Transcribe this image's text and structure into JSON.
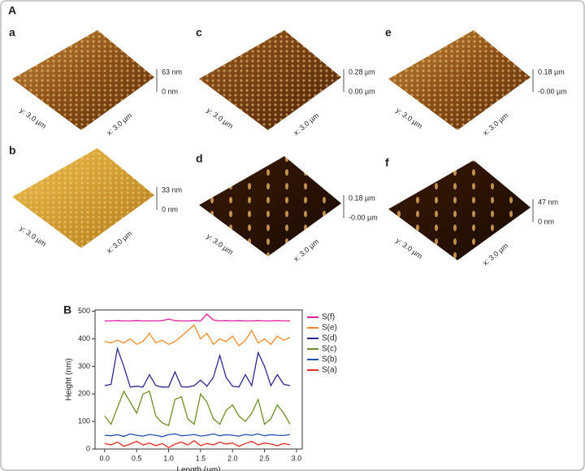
{
  "figure": {
    "label": "A",
    "panels": [
      {
        "label": "a",
        "z_top": "63 nm",
        "z_bottom": "0 nm",
        "y_axis": "y: 3.0 µm",
        "x_axis": "x: 3.0 µm"
      },
      {
        "label": "c",
        "z_top": "0.28 µm",
        "z_bottom": "0.00 µm",
        "y_axis": "y: 3.0 µm",
        "x_axis": "x: 3.0 µm"
      },
      {
        "label": "e",
        "z_top": "0.18 µm",
        "z_bottom": "-0.00 µm",
        "y_axis": "y: 3.0 µm",
        "x_axis": "x: 3.0 µm"
      },
      {
        "label": "b",
        "z_top": "33 nm",
        "z_bottom": "0 nm",
        "y_axis": "y: 3.0 µm",
        "x_axis": "x: 3.0 µm"
      },
      {
        "label": "d",
        "z_top": "0.18 µm",
        "z_bottom": "-0.00 µm",
        "y_axis": "y: 3.0 µm",
        "x_axis": "x: 3.0 µm"
      },
      {
        "label": "f",
        "z_top": "47 nm",
        "z_bottom": "0 nm",
        "y_axis": "y: 3.0 µm",
        "x_axis": "x: 3.0 µm"
      }
    ]
  },
  "chart_data": {
    "type": "line",
    "panel_label": "B",
    "y_label": "Height (nm)",
    "x_label": "Length (µm)",
    "x": [
      0,
      0.1,
      0.2,
      0.3,
      0.4,
      0.5,
      0.6,
      0.7,
      0.8,
      0.9,
      1.0,
      1.1,
      1.2,
      1.3,
      1.4,
      1.5,
      1.6,
      1.7,
      1.8,
      1.9,
      2.0,
      2.1,
      2.2,
      2.3,
      2.4,
      2.5,
      2.6,
      2.7,
      2.8,
      2.9
    ],
    "series": [
      {
        "name": "S(f)",
        "color": "#e0209a",
        "values": [
          465,
          465,
          466,
          465,
          465,
          466,
          465,
          465,
          465,
          466,
          472,
          466,
          465,
          465,
          466,
          465,
          490,
          468,
          465,
          466,
          465,
          466,
          465,
          465,
          466,
          465,
          465,
          466,
          465,
          465
        ]
      },
      {
        "name": "S(e)",
        "color": "#f08a24",
        "values": [
          390,
          385,
          395,
          385,
          400,
          380,
          390,
          420,
          385,
          395,
          380,
          390,
          410,
          430,
          450,
          400,
          420,
          380,
          400,
          390,
          410,
          375,
          395,
          430,
          385,
          400,
          380,
          410,
          395,
          405
        ]
      },
      {
        "name": "S(d)",
        "color": "#2a2a8c",
        "values": [
          230,
          235,
          365,
          300,
          225,
          228,
          225,
          270,
          230,
          225,
          225,
          280,
          226,
          225,
          230,
          250,
          228,
          260,
          340,
          260,
          228,
          225,
          270,
          230,
          350,
          300,
          230,
          270,
          235,
          230
        ]
      },
      {
        "name": "S(c)",
        "color": "#6b8e23",
        "values": [
          120,
          90,
          150,
          210,
          170,
          130,
          200,
          210,
          120,
          95,
          85,
          180,
          190,
          110,
          90,
          200,
          170,
          110,
          90,
          140,
          160,
          120,
          100,
          130,
          180,
          90,
          110,
          160,
          130,
          90
        ]
      },
      {
        "name": "S(b)",
        "color": "#1f4fb4",
        "values": [
          50,
          48,
          52,
          46,
          55,
          50,
          47,
          53,
          50,
          45,
          52,
          55,
          48,
          50,
          53,
          47,
          50,
          55,
          48,
          52,
          50,
          47,
          53,
          50,
          55,
          48,
          52,
          50,
          49,
          53
        ]
      },
      {
        "name": "S(a)",
        "color": "#e03020",
        "values": [
          20,
          15,
          25,
          10,
          18,
          28,
          15,
          22,
          12,
          20,
          5,
          18,
          25,
          15,
          30,
          12,
          20,
          15,
          25,
          18,
          22,
          10,
          20,
          28,
          15,
          22,
          18,
          12,
          20,
          15
        ]
      }
    ],
    "xlim": [
      -0.15,
      3.09
    ],
    "ylim": [
      0,
      505
    ],
    "xticks": [
      {
        "value": 0,
        "label": "0.0"
      },
      {
        "value": 0.5,
        "label": "0.5"
      },
      {
        "value": 1,
        "label": "1.0"
      },
      {
        "value": 1.5,
        "label": "1.5"
      },
      {
        "value": 2,
        "label": "2.0"
      },
      {
        "value": 2.5,
        "label": "2.5"
      },
      {
        "value": 3,
        "label": "3.0"
      }
    ],
    "yticks": [
      0,
      100,
      200,
      300,
      400,
      500
    ],
    "legend": "right"
  }
}
